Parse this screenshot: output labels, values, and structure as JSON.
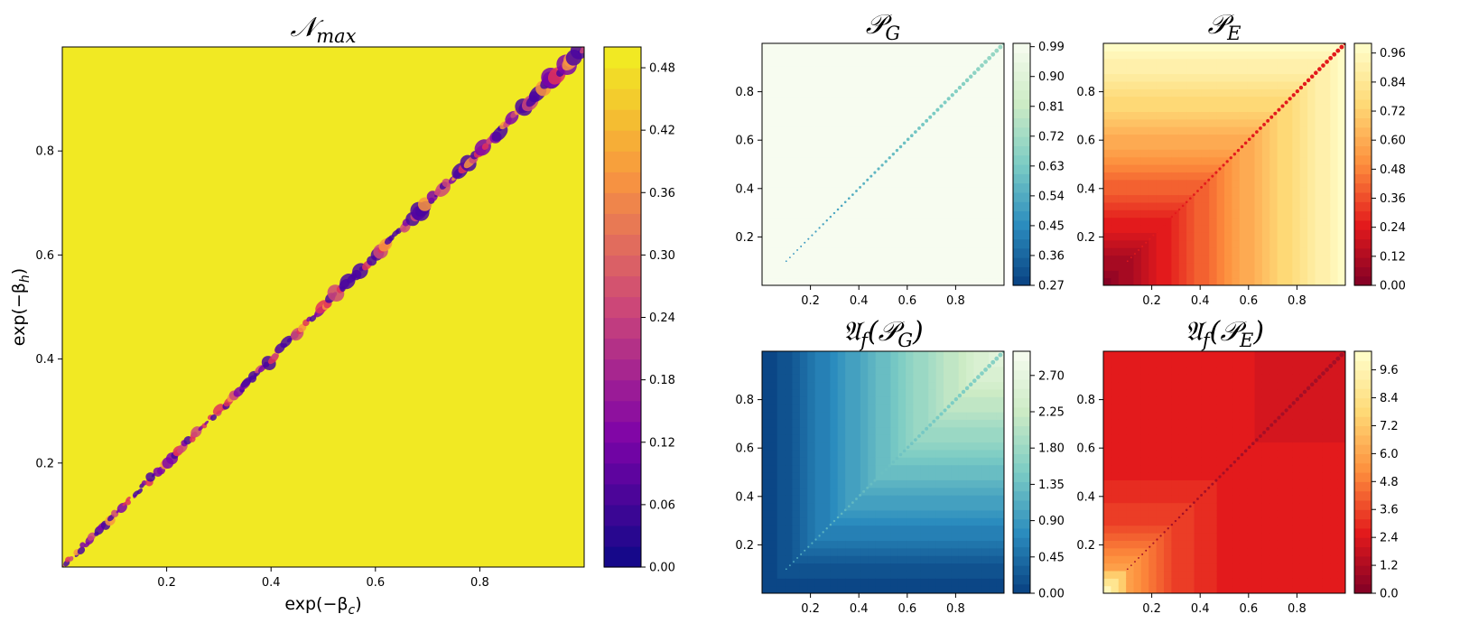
{
  "chart_data": [
    {
      "id": "nmax",
      "type": "heatmap",
      "title": "𝒩max",
      "title_main": "𝒩",
      "title_sub": "max",
      "xlabel": "exp(−β",
      "xlabel_sub": "c",
      "ylabel": "exp(−β",
      "ylabel_sub": "h",
      "xlim": [
        0,
        1
      ],
      "ylim": [
        0,
        1
      ],
      "xticks": [
        "0.2",
        "0.4",
        "0.6",
        "0.8"
      ],
      "yticks": [
        "0.2",
        "0.4",
        "0.6",
        "0.8"
      ],
      "colormap": "plasma",
      "background_value": 0.5,
      "diagonal_value_range": [
        0.0,
        0.3
      ],
      "colorbar": {
        "vmin": 0.0,
        "vmax": 0.5,
        "ticks": [
          "0.00",
          "0.06",
          "0.12",
          "0.18",
          "0.24",
          "0.30",
          "0.36",
          "0.42",
          "0.48"
        ]
      }
    },
    {
      "id": "pg",
      "type": "heatmap",
      "title": "𝒫G",
      "title_main": "𝒫",
      "title_sub": "G",
      "xlim": [
        0,
        1
      ],
      "ylim": [
        0,
        1
      ],
      "xticks": [
        "0.2",
        "0.4",
        "0.6",
        "0.8"
      ],
      "yticks": [
        "0.2",
        "0.4",
        "0.6",
        "0.8"
      ],
      "colormap": "GnBu_r",
      "background_value": 1.0,
      "colorbar": {
        "vmin": 0.27,
        "vmax": 1.0,
        "ticks": [
          "0.27",
          "0.36",
          "0.45",
          "0.54",
          "0.63",
          "0.72",
          "0.81",
          "0.90",
          "0.99"
        ]
      }
    },
    {
      "id": "pe",
      "type": "heatmap",
      "title": "𝒫E",
      "title_main": "𝒫",
      "title_sub": "E",
      "xlim": [
        0,
        1
      ],
      "ylim": [
        0,
        1
      ],
      "xticks": [
        "0.2",
        "0.4",
        "0.6",
        "0.8"
      ],
      "yticks": [
        "0.2",
        "0.4",
        "0.6",
        "0.8"
      ],
      "colormap": "YlOrRd_r",
      "colorbar": {
        "vmin": 0.0,
        "vmax": 1.0,
        "ticks": [
          "0.00",
          "0.12",
          "0.24",
          "0.36",
          "0.48",
          "0.60",
          "0.72",
          "0.84",
          "0.96"
        ]
      }
    },
    {
      "id": "afpg",
      "type": "heatmap",
      "title": "𝔄f(𝒫G)",
      "title_main": "𝔄",
      "title_sub": "f",
      "title_arg": "𝒫",
      "title_arg_sub": "G",
      "xlim": [
        0,
        1
      ],
      "ylim": [
        0,
        1
      ],
      "xticks": [
        "0.2",
        "0.4",
        "0.6",
        "0.8"
      ],
      "yticks": [
        "0.2",
        "0.4",
        "0.6",
        "0.8"
      ],
      "colormap": "GnBu_r",
      "colorbar": {
        "vmin": 0.0,
        "vmax": 3.0,
        "ticks": [
          "0.00",
          "0.45",
          "0.90",
          "1.35",
          "1.80",
          "2.25",
          "2.70"
        ]
      }
    },
    {
      "id": "afpe",
      "type": "heatmap",
      "title": "𝔄f(𝒫E)",
      "title_main": "𝔄",
      "title_sub": "f",
      "title_arg": "𝒫",
      "title_arg_sub": "E",
      "xlim": [
        0,
        1
      ],
      "ylim": [
        0,
        1
      ],
      "xticks": [
        "0.2",
        "0.4",
        "0.6",
        "0.8"
      ],
      "yticks": [
        "0.2",
        "0.4",
        "0.6",
        "0.8"
      ],
      "colormap": "YlOrRd_r",
      "colorbar": {
        "vmin": 0.0,
        "vmax": 10.4,
        "ticks": [
          "0.0",
          "1.2",
          "2.4",
          "3.6",
          "4.8",
          "6.0",
          "7.2",
          "8.4",
          "9.6"
        ]
      }
    }
  ]
}
